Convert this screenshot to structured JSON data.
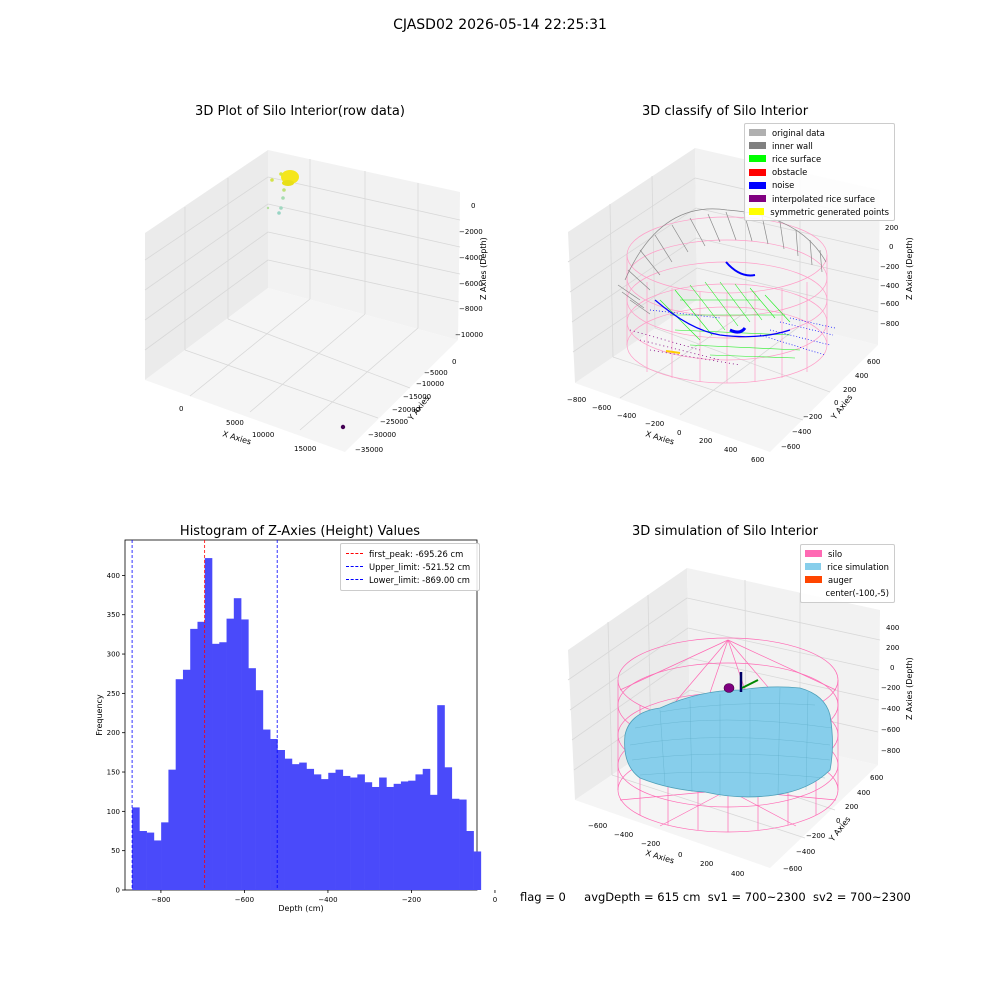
{
  "figure_title": "CJASD02 2026-05-14 22:25:31",
  "footer": {
    "flag": "flag = 0",
    "avg_depth": "avgDepth = 615 cm",
    "sv1": "sv1 = 700~2300",
    "sv2": "sv2 = 700~2300"
  },
  "chart_data": [
    {
      "type": "scatter",
      "title": "3D Plot of Silo Interior(row data)",
      "xlabel": "X Axies",
      "ylabel": "Y Axies",
      "zlabel": "Z Axies (Depth)",
      "x_ticks": [
        "0",
        "5000",
        "10000",
        "15000"
      ],
      "y_ticks": [
        "0",
        "−5000",
        "−10000",
        "−15000",
        "−20000",
        "−25000",
        "−30000",
        "−35000"
      ],
      "z_ticks": [
        "0",
        "−2000",
        "−4000",
        "−6000",
        "−8000",
        "−10000"
      ],
      "colors": {
        "cluster": "#f5e61b",
        "scatter": "#a6dcb0",
        "outlier": "#440154"
      }
    },
    {
      "type": "scatter",
      "title": "3D classify of Silo Interior",
      "xlabel": "X Axies",
      "ylabel": "Y Axies",
      "zlabel": "Z Axies (Depth)",
      "x_ticks": [
        "−800",
        "−600",
        "−400",
        "−200",
        "0",
        "200",
        "400",
        "600"
      ],
      "y_ticks": [
        "600",
        "400",
        "200",
        "0",
        "−200",
        "−400",
        "−600"
      ],
      "z_ticks": [
        "200",
        "0",
        "−200",
        "−400",
        "−600",
        "−800"
      ],
      "legend": [
        {
          "label": "original data",
          "color": "#b0b0b0"
        },
        {
          "label": "inner wall",
          "color": "#808080"
        },
        {
          "label": "rice surface",
          "color": "#00ff00"
        },
        {
          "label": "obstacle",
          "color": "#ff0000"
        },
        {
          "label": "noise",
          "color": "#0000ff"
        },
        {
          "label": "interpolated rice surface",
          "color": "#800080"
        },
        {
          "label": "symmetric generated points",
          "color": "#ffff00"
        }
      ]
    },
    {
      "type": "bar",
      "title": "Histogram of Z-Axies (Height) Values",
      "xlabel": "Depth (cm)",
      "ylabel": "Frequency",
      "xlim": [
        -886,
        -43
      ],
      "ylim": [
        0,
        445
      ],
      "x_ticks": [
        -800,
        -600,
        -400,
        -200,
        0
      ],
      "y_ticks": [
        0,
        50,
        100,
        150,
        200,
        250,
        300,
        350,
        400
      ],
      "x_tick_labels": [
        "−800",
        "−600",
        "−400",
        "−200",
        "0"
      ],
      "y_tick_labels": [
        "0",
        "50",
        "100",
        "150",
        "200",
        "250",
        "300",
        "350",
        "400"
      ],
      "bin_start": -869,
      "bin_width": 17.4,
      "values": [
        105,
        75,
        73,
        63,
        86,
        153,
        268,
        280,
        332,
        341,
        422,
        313,
        315,
        345,
        371,
        344,
        282,
        254,
        204,
        192,
        178,
        167,
        160,
        162,
        154,
        147,
        141,
        149,
        153,
        145,
        143,
        147,
        137,
        131,
        143,
        131,
        135,
        138,
        139,
        147,
        154,
        121,
        235,
        156,
        116,
        115,
        75,
        49
      ],
      "bar_color": "#4a4afa",
      "vlines": [
        {
          "label": "first_peak: -695.26 cm",
          "x": -695.26,
          "color": "#ff0000"
        },
        {
          "label": "Upper_limit: -521.52 cm",
          "x": -521.52,
          "color": "#0000ff"
        },
        {
          "label": "Lower_limit: -869.00 cm",
          "x": -869.0,
          "color": "#0000ff"
        }
      ]
    },
    {
      "type": "area",
      "title": "3D simulation of Silo Interior",
      "xlabel": "X Axies",
      "ylabel": "Y Axies",
      "zlabel": "Z Axies (Depth)",
      "x_ticks": [
        "−600",
        "−400",
        "−200",
        "0",
        "200",
        "400"
      ],
      "y_ticks": [
        "600",
        "400",
        "200",
        "0",
        "−200",
        "−400",
        "−600"
      ],
      "z_ticks": [
        "400",
        "200",
        "0",
        "−200",
        "−400",
        "−600",
        "−800"
      ],
      "legend": [
        {
          "label": "silo",
          "color": "#ff69b4"
        },
        {
          "label": "rice simulation",
          "color": "#87ceeb"
        },
        {
          "label": "auger",
          "color": "#ff4500"
        },
        {
          "label": "center(-100,-5)",
          "color": ""
        }
      ]
    }
  ]
}
